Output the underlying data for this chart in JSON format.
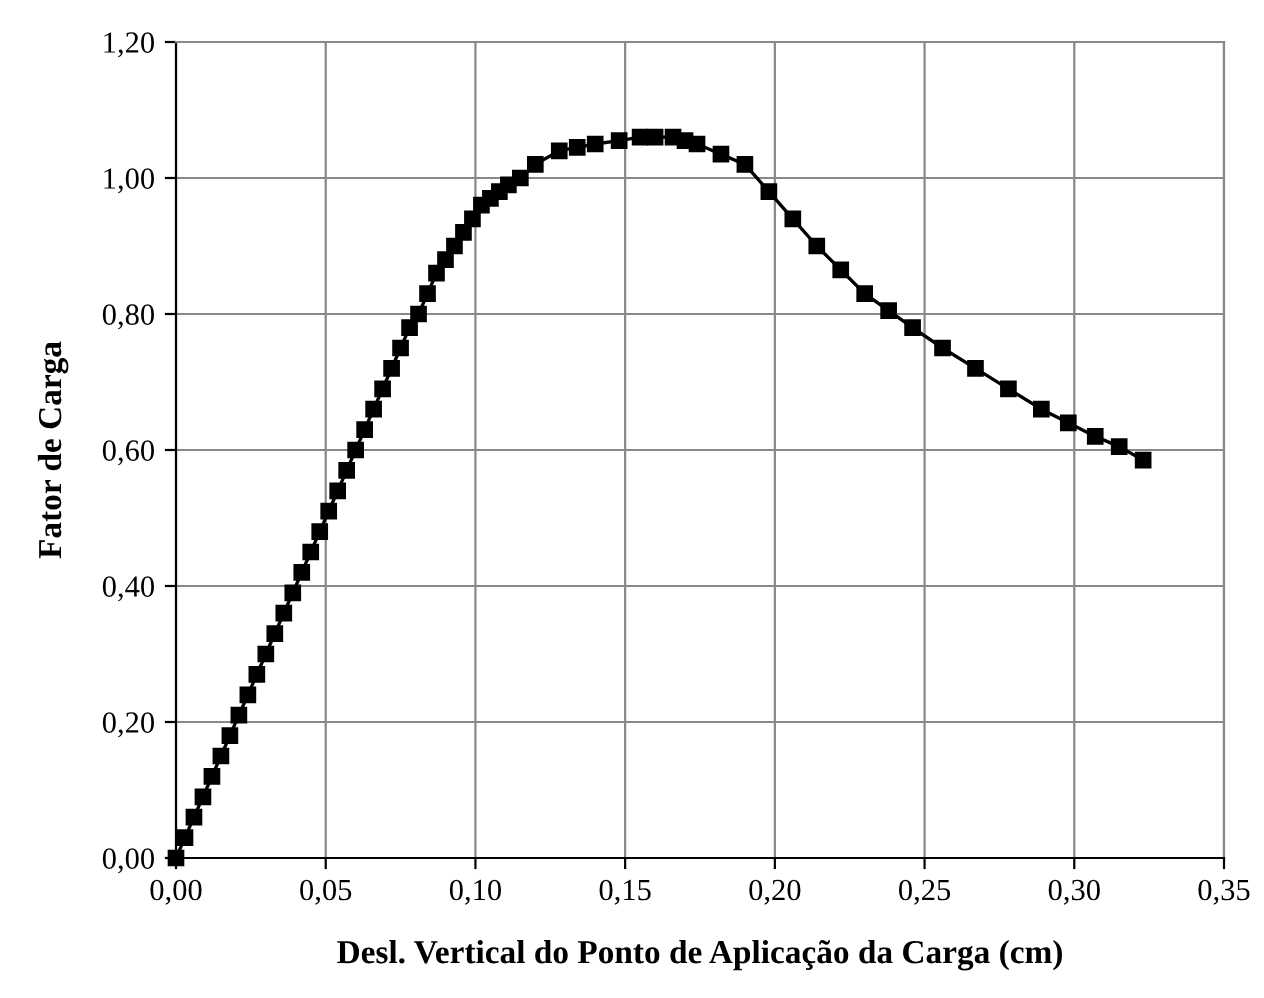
{
  "chart_data": {
    "type": "line",
    "xlabel": "Desl. Vertical do Ponto de Aplicação da Carga (cm)",
    "ylabel": "Fator de Carga",
    "x": [
      0,
      0.003,
      0.006,
      0.009,
      0.012,
      0.015,
      0.018,
      0.021,
      0.024,
      0.027,
      0.03,
      0.033,
      0.036,
      0.039,
      0.042,
      0.045,
      0.048,
      0.051,
      0.054,
      0.057,
      0.06,
      0.063,
      0.066,
      0.069,
      0.072,
      0.075,
      0.078,
      0.081,
      0.084,
      0.087,
      0.09,
      0.093,
      0.096,
      0.099,
      0.102,
      0.105,
      0.108,
      0.111,
      0.115,
      0.12,
      0.128,
      0.134,
      0.14,
      0.148,
      0.155,
      0.16,
      0.166,
      0.17,
      0.174,
      0.182,
      0.19,
      0.198,
      0.206,
      0.214,
      0.222,
      0.23,
      0.238,
      0.246,
      0.256,
      0.267,
      0.278,
      0.289,
      0.298,
      0.307,
      0.315,
      0.323
    ],
    "series": [
      {
        "color": "#000000",
        "values": [
          0,
          0.03,
          0.06,
          0.09,
          0.12,
          0.15,
          0.18,
          0.21,
          0.24,
          0.27,
          0.3,
          0.33,
          0.36,
          0.39,
          0.42,
          0.45,
          0.48,
          0.51,
          0.54,
          0.57,
          0.6,
          0.63,
          0.66,
          0.69,
          0.72,
          0.75,
          0.78,
          0.8,
          0.83,
          0.86,
          0.88,
          0.9,
          0.92,
          0.94,
          0.96,
          0.97,
          0.98,
          0.99,
          1.0,
          1.02,
          1.04,
          1.045,
          1.05,
          1.055,
          1.06,
          1.06,
          1.06,
          1.055,
          1.05,
          1.035,
          1.02,
          0.98,
          0.94,
          0.9,
          0.865,
          0.83,
          0.805,
          0.78,
          0.75,
          0.72,
          0.69,
          0.66,
          0.64,
          0.62,
          0.605,
          0.585
        ]
      }
    ],
    "xlim": [
      0,
      0.35
    ],
    "xticks": [
      {
        "value": 0,
        "label": "0,00"
      },
      {
        "value": 0.05,
        "label": "0,05"
      },
      {
        "value": 0.1,
        "label": "0,10"
      },
      {
        "value": 0.15,
        "label": "0,15"
      },
      {
        "value": 0.2,
        "label": "0,20"
      },
      {
        "value": 0.25,
        "label": "0,25"
      },
      {
        "value": 0.3,
        "label": "0,30"
      },
      {
        "value": 0.35,
        "label": "0,35"
      }
    ],
    "ylim": [
      0,
      1.2
    ],
    "yticks": [
      {
        "value": 0,
        "label": "0,00"
      },
      {
        "value": 0.2,
        "label": "0,20"
      },
      {
        "value": 0.4,
        "label": "0,40"
      },
      {
        "value": 0.6,
        "label": "0,60"
      },
      {
        "value": 0.8,
        "label": "0,80"
      },
      {
        "value": 1.0,
        "label": "1,00"
      },
      {
        "value": 1.2,
        "label": "1,20"
      }
    ],
    "grid": true,
    "marker": "square",
    "line_style": "solid",
    "legend": false
  }
}
